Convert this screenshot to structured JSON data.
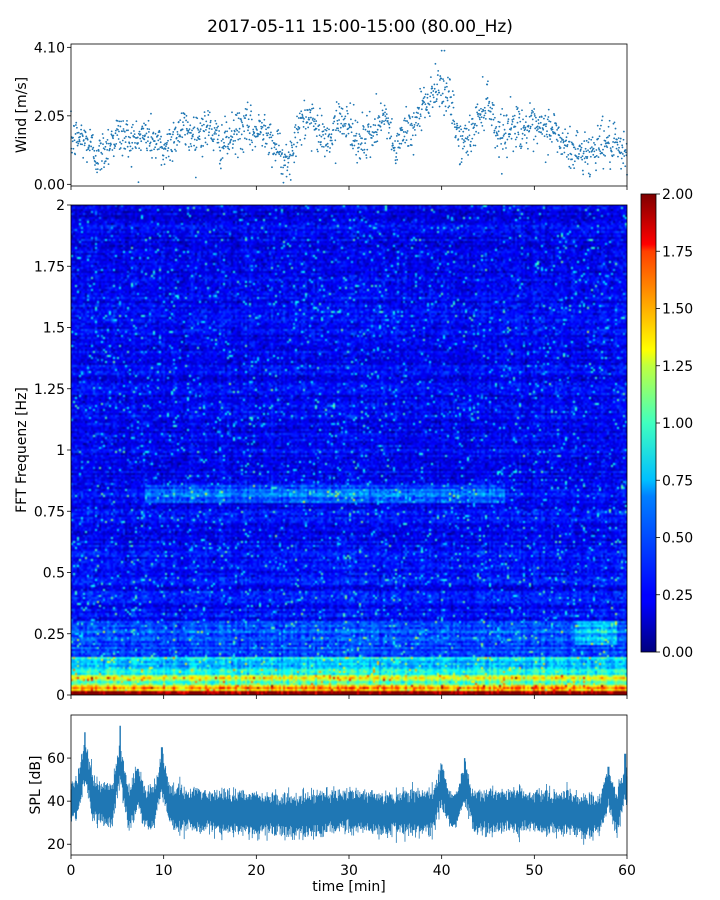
{
  "chart_data": [
    {
      "type": "scatter",
      "title": "2017-05-11 15:00-15:00 (80.00_Hz)",
      "ylabel": "Wind [m/s]",
      "xlim": [
        0,
        60
      ],
      "ylim": [
        -0.05,
        4.2
      ],
      "yticks": [
        "0.00",
        "2.05",
        "4.10"
      ],
      "ytick_values": [
        0.0,
        2.05,
        4.1
      ],
      "color": "#1f77b4",
      "trend": {
        "x": [
          0,
          1,
          2,
          3,
          4,
          5,
          6,
          7,
          8,
          9,
          10,
          11,
          12,
          13,
          14,
          15,
          16,
          17,
          18,
          19,
          20,
          21,
          22,
          23,
          24,
          25,
          26,
          27,
          28,
          29,
          30,
          31,
          32,
          33,
          34,
          35,
          36,
          37,
          38,
          39,
          40,
          41,
          42,
          43,
          44,
          45,
          46,
          47,
          48,
          49,
          50,
          51,
          52,
          53,
          54,
          55,
          56,
          57,
          58,
          59,
          60
        ],
        "y": [
          1.3,
          1.4,
          1.2,
          0.8,
          1.2,
          1.5,
          1.4,
          1.3,
          1.5,
          1.3,
          1.0,
          1.4,
          1.7,
          1.5,
          1.6,
          1.7,
          1.2,
          1.3,
          1.6,
          1.7,
          1.5,
          1.8,
          1.1,
          0.7,
          1.2,
          1.8,
          2.0,
          1.5,
          1.4,
          2.1,
          1.8,
          1.2,
          1.4,
          1.6,
          2.0,
          1.0,
          1.6,
          1.8,
          2.4,
          2.6,
          3.0,
          2.4,
          1.2,
          1.4,
          2.0,
          2.6,
          1.5,
          1.6,
          1.8,
          1.7,
          1.6,
          1.6,
          1.7,
          1.2,
          1.0,
          1.0,
          0.9,
          1.3,
          1.2,
          1.0,
          0.8
        ]
      }
    },
    {
      "type": "heatmap",
      "ylabel": "FFT Frequenz [Hz]",
      "xlim": [
        0,
        60
      ],
      "ylim": [
        0,
        2
      ],
      "yticks": [
        "0",
        "0.25",
        "0.5",
        "0.75",
        "1",
        "1.25",
        "1.5",
        "1.75",
        "2"
      ],
      "ytick_values": [
        0,
        0.25,
        0.5,
        0.75,
        1.0,
        1.25,
        1.5,
        1.75,
        2.0
      ],
      "colormap": "jet",
      "color_range": [
        0.0,
        2.0
      ],
      "colorbar_ticks": [
        "0.00",
        "0.25",
        "0.50",
        "0.75",
        "1.00",
        "1.25",
        "1.50",
        "1.75",
        "2.00"
      ],
      "colorbar_tick_values": [
        0.0,
        0.25,
        0.5,
        0.75,
        1.0,
        1.25,
        1.5,
        1.75,
        2.0
      ]
    },
    {
      "type": "area",
      "ylabel": "SPL [dB]",
      "xlabel": "time [min]",
      "xlim": [
        0,
        60
      ],
      "ylim": [
        15,
        80
      ],
      "xticks": [
        "0",
        "10",
        "20",
        "30",
        "40",
        "50",
        "60"
      ],
      "xtick_values": [
        0,
        10,
        20,
        30,
        40,
        50,
        60
      ],
      "yticks": [
        "20",
        "40",
        "60"
      ],
      "ytick_values": [
        20,
        40,
        60
      ],
      "color": "#1f77b4",
      "center": {
        "x": [
          0,
          2,
          4,
          6,
          8,
          10,
          12,
          14,
          16,
          18,
          20,
          22,
          24,
          26,
          28,
          30,
          32,
          34,
          36,
          38,
          40,
          42,
          44,
          46,
          48,
          50,
          52,
          54,
          56,
          58,
          60
        ],
        "y": [
          40,
          42,
          38,
          37,
          36,
          38,
          36,
          36,
          35,
          35,
          34,
          34,
          33,
          34,
          35,
          36,
          35,
          34,
          35,
          35,
          36,
          36,
          35,
          35,
          36,
          35,
          35,
          34,
          33,
          34,
          33
        ]
      },
      "peaks": [
        {
          "x": 1.5,
          "y": 72
        },
        {
          "x": 5.3,
          "y": 75
        },
        {
          "x": 7.2,
          "y": 55
        },
        {
          "x": 9.8,
          "y": 65
        },
        {
          "x": 40.0,
          "y": 57
        },
        {
          "x": 42.5,
          "y": 60
        },
        {
          "x": 58.0,
          "y": 56
        },
        {
          "x": 59.8,
          "y": 62
        }
      ]
    }
  ]
}
